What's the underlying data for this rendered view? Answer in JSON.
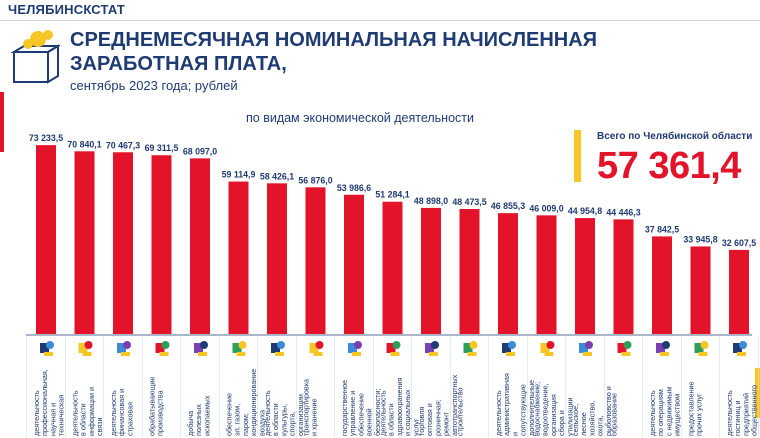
{
  "brand": "ЧЕЛЯБИНСКСТАТ",
  "title_line1": "СРЕДНЕМЕСЯЧНАЯ НОМИНАЛЬНАЯ НАЧИСЛЕННАЯ",
  "title_line2": "ЗАРАБОТНАЯ ПЛАТА,",
  "subtitle": "сентябрь 2023 года; рублей",
  "section": "по видам экономической деятельности",
  "total": {
    "label": "Всего по Челябинской области",
    "value": "57 361,4"
  },
  "colors": {
    "bar": "#e3132a",
    "text": "#1f3b73",
    "accent": "#f6c624"
  },
  "chart_data": {
    "type": "bar",
    "categories": [
      "деятельность профессиональная, научная и техническая",
      "деятельность в области информации и связи",
      "деятельность финансовая и страховая",
      "обрабатывающие производства",
      "добыча полезных ископаемых",
      "обеспечение эл. газом, паром; кондиционирование воздуха",
      "деятельность в области культуры, спорта, организации досуга и развлечений",
      "транспортировка и хранение",
      "государственное управление и обеспечение военной безопасности; социальное обеспечение",
      "деятельность в области здравоохранения и социальных услуг",
      "торговля оптовая и розничная; ремонт автотранспортных средств и мотоциклов",
      "строительство",
      "деятельность административная и сопутствующие дополнительные услуги",
      "водоснабжение; водоотведение, организация сбора и утилизации отходов, деятельность по ликвидации загрязнений",
      "сельское, лесное хозяйство, охота, рыболовство и рыбоводство",
      "образование",
      "деятельность по операциям с недвижимым имуществом",
      "предоставление прочих услуг",
      "деятельность гостиниц и предприятий общественного питания"
    ],
    "value_labels": [
      "73 233,5",
      "70 840,1",
      "70 467,3",
      "69 311,5",
      "68 097,0",
      "59 114,9",
      "58 426,1",
      "56 876,0",
      "53 986,6",
      "51 284,1",
      "48 898,0",
      "48 473,5",
      "46 855,3",
      "46 009,0",
      "44 954,8",
      "44 446,3",
      "37 842,5",
      "33 945,8",
      "32 607,5"
    ],
    "values": [
      73233.5,
      70840.1,
      70467.3,
      69311.5,
      68097.0,
      59114.9,
      58426.1,
      56876.0,
      53986.6,
      51284.1,
      48898.0,
      48473.5,
      46855.3,
      46009.0,
      44954.8,
      44446.3,
      37842.5,
      33945.8,
      32607.5
    ],
    "ylim": [
      0,
      76000
    ],
    "grid": false,
    "icons": [
      "microscope-icon",
      "newspaper-icon",
      "document-money-icon",
      "hammer-icon",
      "minerals-icon",
      "lamp-icon",
      "book-icon",
      "train-icon",
      "tank-icon",
      "stethoscope-icon",
      "shopping-cart-icon",
      "brick-wall-icon",
      "worker-icon",
      "water-pipe-icon",
      "farm-tools-icon",
      "graduation-cap-icon",
      "house-icon",
      "service-person-icon",
      "cup-icon"
    ]
  }
}
